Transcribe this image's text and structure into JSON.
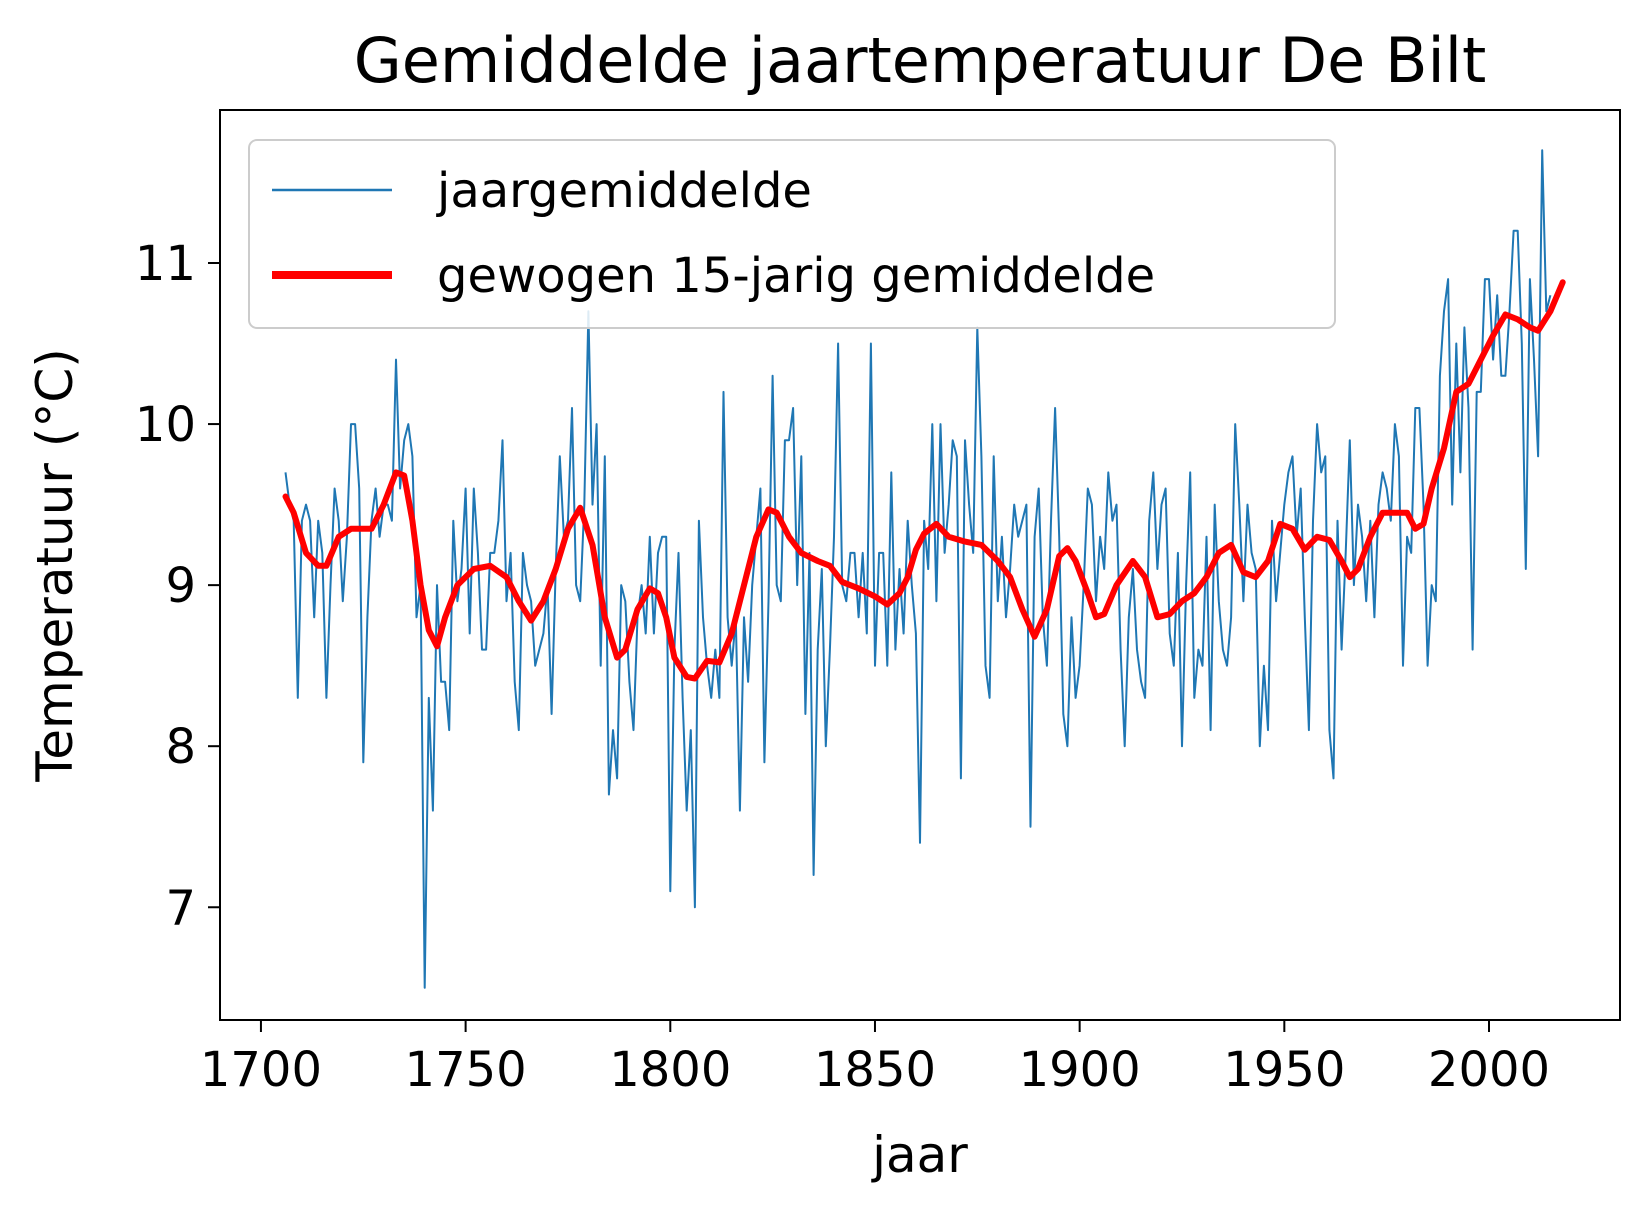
{
  "chart_data": {
    "type": "line",
    "title": "Gemiddelde jaartemperatuur De Bilt",
    "xlabel": "jaar",
    "ylabel": "Temperatuur (°C)",
    "xlim": [
      1690,
      2032
    ],
    "ylim": [
      6.3,
      11.95
    ],
    "xticks": [
      1700,
      1750,
      1800,
      1850,
      1900,
      1950,
      2000
    ],
    "yticks": [
      7,
      8,
      9,
      10,
      11
    ],
    "legend_position": "top-left",
    "colors": {
      "annual": "#1f77b4",
      "smoothed": "#ff0000",
      "axes": "#000000",
      "legend_border": "#cccccc"
    },
    "series": [
      {
        "name": "jaargemiddelde",
        "x_start": 1706,
        "x_step": 1,
        "values": [
          9.7,
          9.5,
          9.4,
          8.3,
          9.4,
          9.5,
          9.4,
          8.8,
          9.4,
          9.2,
          8.3,
          9.0,
          9.6,
          9.4,
          8.9,
          9.3,
          10.0,
          10.0,
          9.6,
          7.9,
          8.8,
          9.4,
          9.6,
          9.3,
          9.5,
          9.5,
          9.4,
          10.4,
          9.6,
          9.9,
          10.0,
          9.8,
          8.8,
          9.0,
          6.5,
          8.3,
          7.6,
          9.0,
          8.4,
          8.4,
          8.1,
          9.4,
          8.9,
          9.1,
          9.6,
          8.7,
          9.6,
          9.2,
          8.6,
          8.6,
          9.2,
          9.2,
          9.4,
          9.9,
          8.9,
          9.2,
          8.4,
          8.1,
          9.2,
          9.0,
          8.9,
          8.5,
          8.6,
          8.7,
          9.0,
          8.2,
          9.1,
          9.8,
          9.3,
          9.4,
          10.1,
          9.0,
          8.9,
          9.5,
          10.7,
          9.5,
          10.0,
          8.5,
          9.8,
          7.7,
          8.1,
          7.8,
          9.0,
          8.9,
          8.4,
          8.1,
          8.8,
          9.0,
          8.7,
          9.3,
          8.7,
          9.2,
          9.3,
          9.3,
          7.1,
          8.6,
          9.2,
          8.3,
          7.6,
          8.1,
          7.0,
          9.4,
          8.8,
          8.5,
          8.3,
          8.6,
          8.3,
          10.2,
          8.8,
          8.5,
          8.8,
          7.6,
          8.8,
          8.4,
          9.0,
          9.3,
          9.6,
          7.9,
          8.9,
          10.3,
          9.0,
          8.9,
          9.9,
          9.9,
          10.1,
          9.0,
          9.8,
          8.2,
          9.2,
          7.2,
          8.6,
          9.1,
          8.0,
          8.6,
          9.3,
          10.5,
          9.0,
          8.9,
          9.2,
          9.2,
          8.8,
          9.2,
          8.7,
          10.5,
          8.5,
          9.2,
          9.2,
          8.5,
          9.7,
          8.6,
          9.1,
          8.7,
          9.4,
          9.0,
          8.7,
          7.4,
          9.4,
          9.1,
          10.0,
          8.9,
          10.0,
          9.2,
          9.5,
          9.9,
          9.8,
          7.8,
          9.9,
          9.5,
          9.2,
          10.6,
          9.8,
          8.5,
          8.3,
          9.8,
          8.9,
          9.3,
          8.8,
          9.1,
          9.5,
          9.3,
          9.4,
          9.5,
          7.5,
          9.3,
          9.6,
          8.8,
          8.5,
          9.4,
          10.1,
          9.3,
          8.2,
          8.0,
          8.8,
          8.3,
          8.5,
          9.0,
          9.6,
          9.5,
          8.9,
          9.3,
          9.1,
          9.7,
          9.4,
          9.5,
          8.6,
          8.0,
          8.8,
          9.1,
          8.6,
          8.4,
          8.3,
          9.4,
          9.7,
          9.1,
          9.5,
          9.6,
          8.7,
          8.5,
          9.2,
          8.0,
          9.0,
          9.7,
          8.3,
          8.6,
          8.5,
          9.3,
          8.1,
          9.5,
          8.9,
          8.6,
          8.5,
          8.8,
          10.0,
          9.5,
          8.9,
          9.5,
          9.2,
          9.1,
          8.0,
          8.5,
          8.1,
          9.4,
          8.9,
          9.2,
          9.5,
          9.7,
          9.8,
          9.3,
          9.6,
          8.8,
          8.1,
          9.4,
          10.0,
          9.7,
          9.8,
          8.1,
          7.8,
          9.4,
          8.6,
          9.2,
          9.9,
          9.0,
          9.5,
          9.3,
          8.9,
          9.4,
          8.8,
          9.5,
          9.7,
          9.6,
          9.4,
          10.0,
          9.8,
          8.5,
          9.3,
          9.2,
          10.1,
          10.1,
          9.5,
          8.5,
          9.0,
          8.9,
          10.3,
          10.7,
          10.9,
          9.5,
          10.5,
          9.7,
          10.6,
          10.1,
          8.6,
          10.2,
          10.2,
          10.9,
          10.9,
          10.4,
          10.8,
          10.3,
          10.3,
          10.7,
          11.2,
          11.2,
          10.5,
          9.1,
          10.9,
          10.4,
          9.8,
          11.7,
          10.7,
          10.8
        ]
      },
      {
        "name": "gewogen 15-jarig gemiddelde",
        "points": [
          [
            1706,
            9.55
          ],
          [
            1708,
            9.45
          ],
          [
            1711,
            9.2
          ],
          [
            1714,
            9.12
          ],
          [
            1716,
            9.12
          ],
          [
            1719,
            9.3
          ],
          [
            1722,
            9.35
          ],
          [
            1727,
            9.35
          ],
          [
            1730,
            9.5
          ],
          [
            1733,
            9.7
          ],
          [
            1735,
            9.68
          ],
          [
            1737,
            9.4
          ],
          [
            1739,
            9.0
          ],
          [
            1741,
            8.72
          ],
          [
            1743,
            8.62
          ],
          [
            1745,
            8.8
          ],
          [
            1748,
            9.0
          ],
          [
            1752,
            9.1
          ],
          [
            1756,
            9.12
          ],
          [
            1760,
            9.05
          ],
          [
            1763,
            8.9
          ],
          [
            1766,
            8.78
          ],
          [
            1769,
            8.9
          ],
          [
            1772,
            9.1
          ],
          [
            1775,
            9.35
          ],
          [
            1778,
            9.48
          ],
          [
            1781,
            9.25
          ],
          [
            1784,
            8.8
          ],
          [
            1787,
            8.55
          ],
          [
            1789,
            8.6
          ],
          [
            1792,
            8.85
          ],
          [
            1795,
            8.98
          ],
          [
            1797,
            8.95
          ],
          [
            1799,
            8.8
          ],
          [
            1801,
            8.55
          ],
          [
            1804,
            8.43
          ],
          [
            1806,
            8.42
          ],
          [
            1809,
            8.53
          ],
          [
            1812,
            8.52
          ],
          [
            1815,
            8.7
          ],
          [
            1818,
            9.0
          ],
          [
            1821,
            9.3
          ],
          [
            1824,
            9.47
          ],
          [
            1826,
            9.45
          ],
          [
            1829,
            9.3
          ],
          [
            1832,
            9.2
          ],
          [
            1836,
            9.15
          ],
          [
            1839,
            9.12
          ],
          [
            1842,
            9.02
          ],
          [
            1846,
            8.98
          ],
          [
            1850,
            8.93
          ],
          [
            1853,
            8.88
          ],
          [
            1856,
            8.95
          ],
          [
            1858,
            9.05
          ],
          [
            1860,
            9.22
          ],
          [
            1862,
            9.32
          ],
          [
            1865,
            9.38
          ],
          [
            1868,
            9.3
          ],
          [
            1872,
            9.27
          ],
          [
            1876,
            9.25
          ],
          [
            1880,
            9.15
          ],
          [
            1883,
            9.05
          ],
          [
            1886,
            8.85
          ],
          [
            1889,
            8.68
          ],
          [
            1892,
            8.85
          ],
          [
            1895,
            9.18
          ],
          [
            1897,
            9.23
          ],
          [
            1899,
            9.15
          ],
          [
            1902,
            8.95
          ],
          [
            1904,
            8.8
          ],
          [
            1906,
            8.82
          ],
          [
            1909,
            9.0
          ],
          [
            1913,
            9.15
          ],
          [
            1916,
            9.05
          ],
          [
            1919,
            8.8
          ],
          [
            1922,
            8.82
          ],
          [
            1925,
            8.9
          ],
          [
            1928,
            8.95
          ],
          [
            1931,
            9.05
          ],
          [
            1934,
            9.2
          ],
          [
            1937,
            9.25
          ],
          [
            1940,
            9.08
          ],
          [
            1943,
            9.05
          ],
          [
            1946,
            9.15
          ],
          [
            1949,
            9.38
          ],
          [
            1952,
            9.35
          ],
          [
            1955,
            9.22
          ],
          [
            1958,
            9.3
          ],
          [
            1961,
            9.28
          ],
          [
            1964,
            9.15
          ],
          [
            1966,
            9.05
          ],
          [
            1968,
            9.1
          ],
          [
            1971,
            9.3
          ],
          [
            1974,
            9.45
          ],
          [
            1977,
            9.45
          ],
          [
            1980,
            9.45
          ],
          [
            1982,
            9.35
          ],
          [
            1984,
            9.38
          ],
          [
            1986,
            9.6
          ],
          [
            1989,
            9.85
          ],
          [
            1992,
            10.2
          ],
          [
            1995,
            10.25
          ],
          [
            1998,
            10.4
          ],
          [
            2001,
            10.55
          ],
          [
            2004,
            10.68
          ],
          [
            2007,
            10.65
          ],
          [
            2010,
            10.6
          ],
          [
            2012,
            10.58
          ],
          [
            2015,
            10.7
          ],
          [
            2018,
            10.88
          ]
        ]
      }
    ]
  }
}
